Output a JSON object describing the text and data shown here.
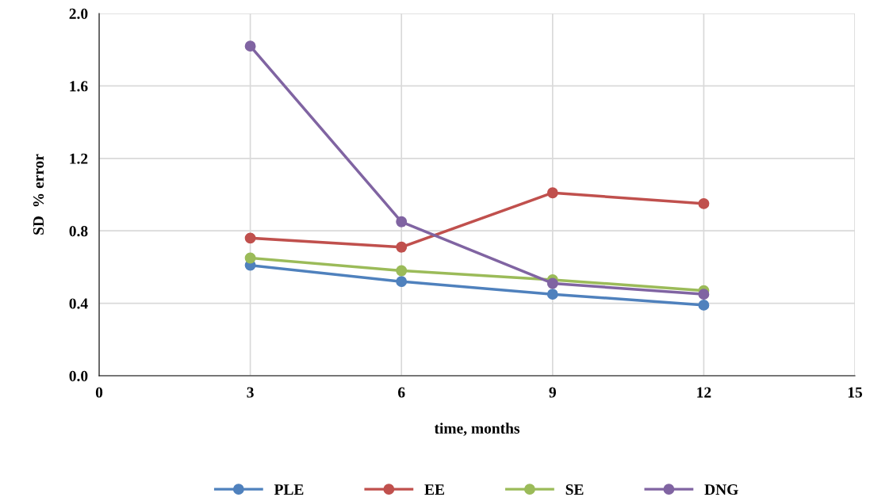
{
  "chart_data": {
    "type": "line",
    "xlabel": "time, months",
    "ylabel": "SD  % error",
    "x": [
      3,
      6,
      9,
      12
    ],
    "series": [
      {
        "name": "PLE",
        "color": "#4f81bd",
        "values": [
          0.61,
          0.52,
          0.45,
          0.39
        ]
      },
      {
        "name": "EE",
        "color": "#c0504d",
        "values": [
          0.76,
          0.71,
          1.01,
          0.95
        ]
      },
      {
        "name": "SE",
        "color": "#9bbb59",
        "values": [
          0.65,
          0.58,
          0.53,
          0.47
        ]
      },
      {
        "name": "DNG",
        "color": "#8064a2",
        "values": [
          1.82,
          0.85,
          0.51,
          0.45
        ]
      }
    ],
    "xlim": [
      0,
      15
    ],
    "xticks": [
      0,
      3,
      6,
      9,
      12,
      15
    ],
    "ylim": [
      0,
      2.0
    ],
    "yticks": [
      {
        "value": 0,
        "label": "0.0"
      },
      {
        "value": 0.4,
        "label": "0.4"
      },
      {
        "value": 0.8,
        "label": "0.8"
      },
      {
        "value": 1.2,
        "label": "1.2"
      },
      {
        "value": 1.6,
        "label": "1.6"
      },
      {
        "value": 2.0,
        "label": "2.0"
      }
    ],
    "grid": true,
    "legend": "bottom",
    "marker": "circle",
    "line_style": "solid"
  }
}
